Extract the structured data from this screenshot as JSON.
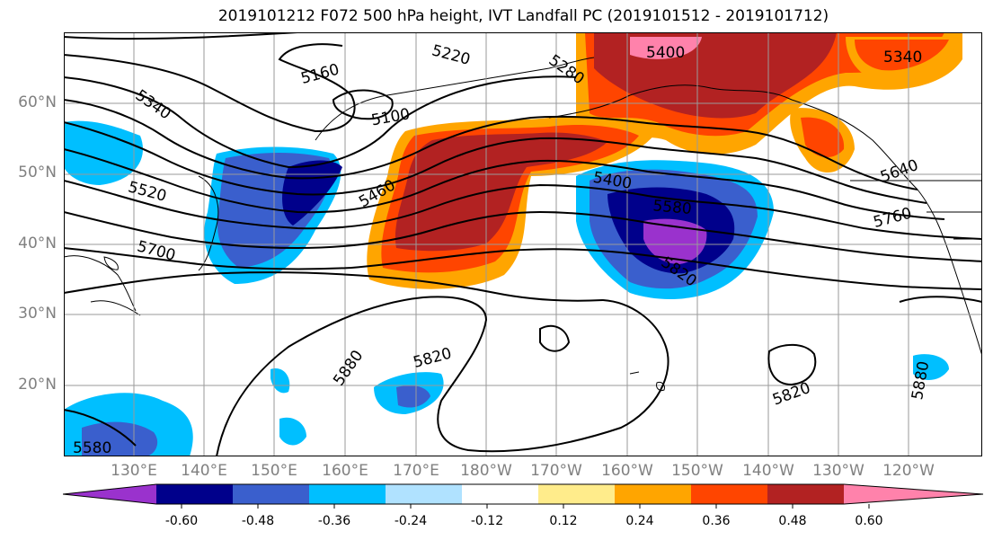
{
  "title": "2019101212 F072 500 hPa height, IVT Landfall PC (2019101512 - 2019101712)",
  "lat_labels": [
    "60°N",
    "50°N",
    "40°N",
    "30°N",
    "20°N"
  ],
  "lon_labels": [
    "130°E",
    "140°E",
    "150°E",
    "160°E",
    "170°E",
    "180°W",
    "170°W",
    "160°W",
    "150°W",
    "140°W",
    "130°W",
    "120°W"
  ],
  "contour_labels": [
    "5400",
    "5340",
    "5280",
    "5220",
    "5160",
    "5100",
    "5340",
    "5520",
    "5460",
    "5700",
    "5400",
    "5580",
    "5640",
    "5760",
    "5820",
    "5880",
    "5820",
    "5820",
    "5880",
    "5580"
  ],
  "colorbar": {
    "ticks": [
      "-0.60",
      "-0.48",
      "-0.36",
      "-0.24",
      "-0.12",
      "0.12",
      "0.24",
      "0.36",
      "0.48",
      "0.60"
    ],
    "colors": [
      "#9a32cd",
      "#00008b",
      "#3a5fcd",
      "#00bfff",
      "#b0e2ff",
      "#ffffff",
      "#ffec8b",
      "#ffa500",
      "#ff4500",
      "#b22222",
      "#ff82ab"
    ]
  }
}
